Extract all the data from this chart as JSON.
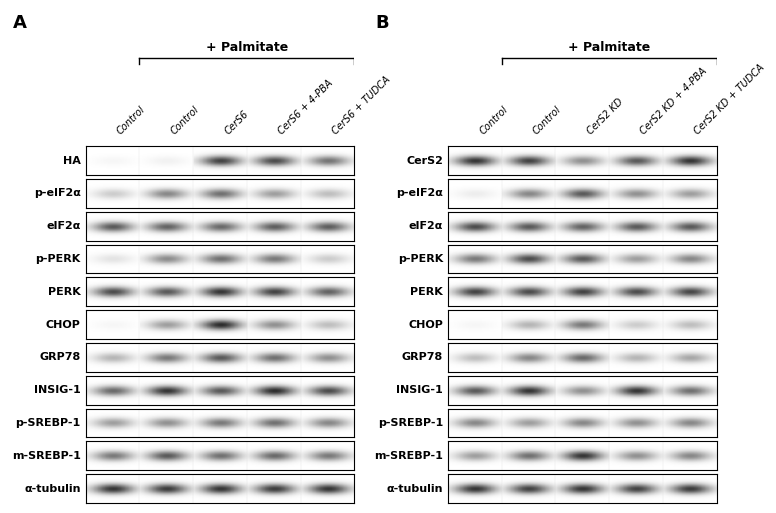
{
  "panel_A_label": "A",
  "panel_B_label": "B",
  "palmitate_label": "+ Palmitate",
  "panel_A_cols": [
    "Control",
    "Control",
    "CerS6",
    "CerS6 + 4-PBA",
    "CerS6 + TUDCA"
  ],
  "panel_B_cols": [
    "Control",
    "Control",
    "CerS2 KD",
    "CerS2 KD + 4-PBA",
    "CerS2 KD + TUDCA"
  ],
  "row_labels_A": [
    "HA",
    "p-eIF2α",
    "eIF2α",
    "p-PERK",
    "PERK",
    "CHOP",
    "GRP78",
    "INSIG-1",
    "p-SREBP-1",
    "m-SREBP-1",
    "α-tubulin"
  ],
  "row_labels_B": [
    "CerS2",
    "p-eIF2α",
    "eIF2α",
    "p-PERK",
    "PERK",
    "CHOP",
    "GRP78",
    "INSIG-1",
    "p-SREBP-1",
    "m-SREBP-1",
    "α-tubulin"
  ],
  "bg_color": "#ffffff",
  "panel_A_bands": [
    [
      0.04,
      0.06,
      0.82,
      0.78,
      0.6
    ],
    [
      0.22,
      0.52,
      0.62,
      0.42,
      0.28
    ],
    [
      0.72,
      0.68,
      0.65,
      0.7,
      0.7
    ],
    [
      0.12,
      0.5,
      0.62,
      0.58,
      0.22
    ],
    [
      0.78,
      0.72,
      0.88,
      0.82,
      0.68
    ],
    [
      0.04,
      0.42,
      0.92,
      0.48,
      0.28
    ],
    [
      0.32,
      0.58,
      0.72,
      0.62,
      0.48
    ],
    [
      0.65,
      0.88,
      0.72,
      0.92,
      0.78
    ],
    [
      0.42,
      0.48,
      0.58,
      0.62,
      0.52
    ],
    [
      0.58,
      0.72,
      0.62,
      0.65,
      0.58
    ],
    [
      0.88,
      0.85,
      0.88,
      0.85,
      0.88
    ]
  ],
  "panel_B_bands": [
    [
      0.88,
      0.82,
      0.48,
      0.72,
      0.88
    ],
    [
      0.08,
      0.52,
      0.72,
      0.48,
      0.42
    ],
    [
      0.78,
      0.72,
      0.68,
      0.72,
      0.72
    ],
    [
      0.58,
      0.78,
      0.72,
      0.42,
      0.52
    ],
    [
      0.82,
      0.78,
      0.82,
      0.78,
      0.8
    ],
    [
      0.04,
      0.32,
      0.58,
      0.22,
      0.28
    ],
    [
      0.28,
      0.52,
      0.65,
      0.32,
      0.38
    ],
    [
      0.72,
      0.88,
      0.48,
      0.88,
      0.62
    ],
    [
      0.52,
      0.42,
      0.52,
      0.48,
      0.52
    ],
    [
      0.42,
      0.62,
      0.88,
      0.48,
      0.52
    ],
    [
      0.88,
      0.82,
      0.88,
      0.82,
      0.85
    ]
  ],
  "col_label_fontsize": 7,
  "row_label_fontsize": 8,
  "panel_label_fontsize": 13,
  "palmitate_fontsize": 9
}
